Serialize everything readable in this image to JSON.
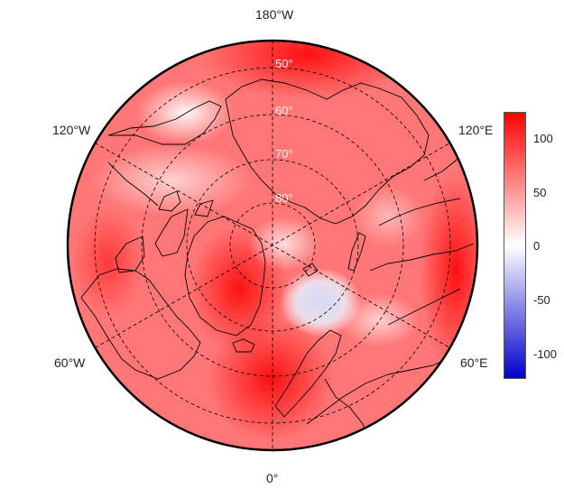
{
  "map": {
    "projection": "north-polar-stereographic",
    "center": "North Pole",
    "lon_labels": {
      "top": "180°W",
      "upper_left": "120°W",
      "upper_right": "120°E",
      "lower_left": "60°W",
      "lower_right": "60°E",
      "bottom": "0°"
    },
    "lat_labels": [
      "50°",
      "60°",
      "70°",
      "80°"
    ],
    "gridlines": "dashed",
    "coastlines": "black"
  },
  "colorbar": {
    "ticks": [
      "100",
      "50",
      "0",
      "-50",
      "-100"
    ],
    "range": [
      -120,
      120
    ],
    "colors": {
      "low": "#0000cc",
      "mid": "#ffffff",
      "high": "#ff0000"
    }
  }
}
